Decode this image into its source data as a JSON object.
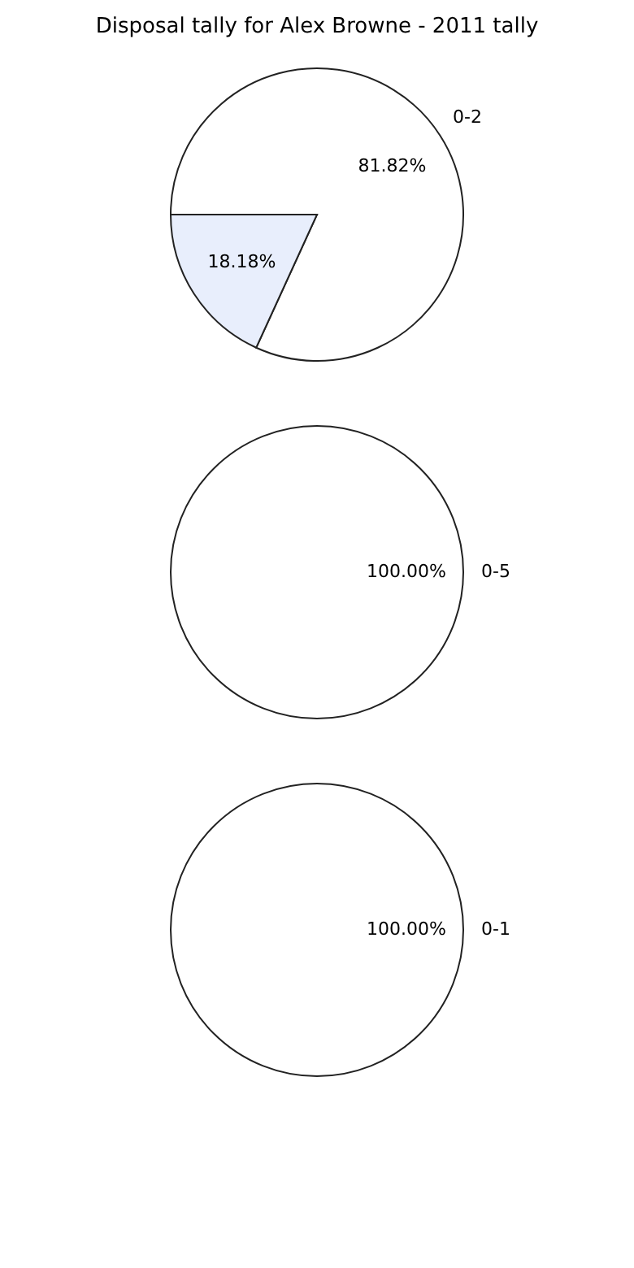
{
  "chart_data": [
    {
      "type": "pie",
      "title": "Disposal tally for Alex Browne - 2011 tally",
      "categories": [
        "0-2",
        null
      ],
      "values": [
        81.82,
        18.18
      ],
      "value_labels": [
        "81.82%",
        "18.18%"
      ],
      "colors": [
        "#ffffff",
        "#e8eefc"
      ]
    },
    {
      "type": "pie",
      "categories": [
        "0-5"
      ],
      "values": [
        100
      ],
      "value_labels": [
        "100.00%"
      ],
      "colors": [
        "#ffffff"
      ]
    },
    {
      "type": "pie",
      "categories": [
        "0-1"
      ],
      "values": [
        100
      ],
      "value_labels": [
        "100.00%"
      ],
      "colors": [
        "#ffffff"
      ]
    }
  ]
}
